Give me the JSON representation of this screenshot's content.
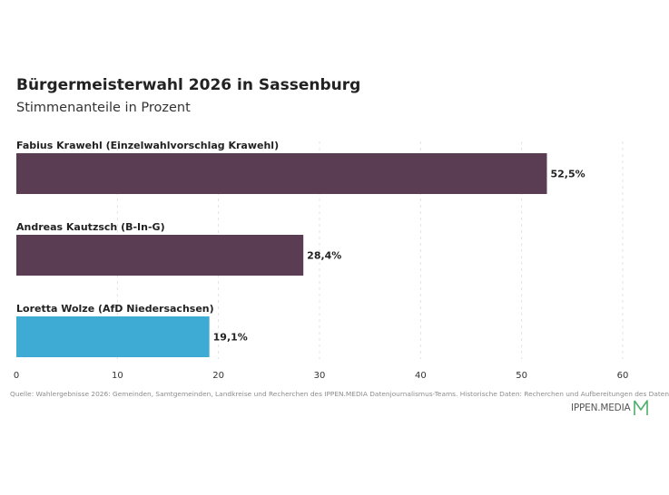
{
  "header": {
    "title": "Bürgermeisterwahl 2026 in Sassenburg",
    "subtitle": "Stimmenanteile in Prozent"
  },
  "chart_data": {
    "type": "bar",
    "orientation": "horizontal",
    "title": "Bürgermeisterwahl 2026 in Sassenburg",
    "subtitle": "Stimmenanteile in Prozent",
    "categories": [
      "Fabius Krawehl (Einzelwahlvorschlag Krawehl)",
      "Andreas Kautzsch (B-In-G)",
      "Loretta Wolze (AfD Niedersachsen)"
    ],
    "values": [
      52.5,
      28.4,
      19.1
    ],
    "value_labels": [
      "52,5%",
      "28,4%",
      "19,1%"
    ],
    "colors": [
      "#5a3d52",
      "#5a3d52",
      "#3eabd4"
    ],
    "xlim": [
      0,
      60
    ],
    "xticks": [
      0,
      10,
      20,
      30,
      40,
      50,
      60
    ],
    "xtick_labels": [
      "0",
      "10",
      "20",
      "30",
      "40",
      "50",
      "60"
    ],
    "grid": true,
    "legend": "none"
  },
  "footer": {
    "source": "Quelle: Wahlergebnisse 2026: Gemeinden, Samtgemeinden, Landkreise und Recherchen des IPPEN.MEDIA Datenjournalismus-Teams. Historische Daten: Recherchen und Aufbereitungen des Daten",
    "logo_text": "IPPEN.MEDIA",
    "logo_color": "#4caf6a"
  }
}
